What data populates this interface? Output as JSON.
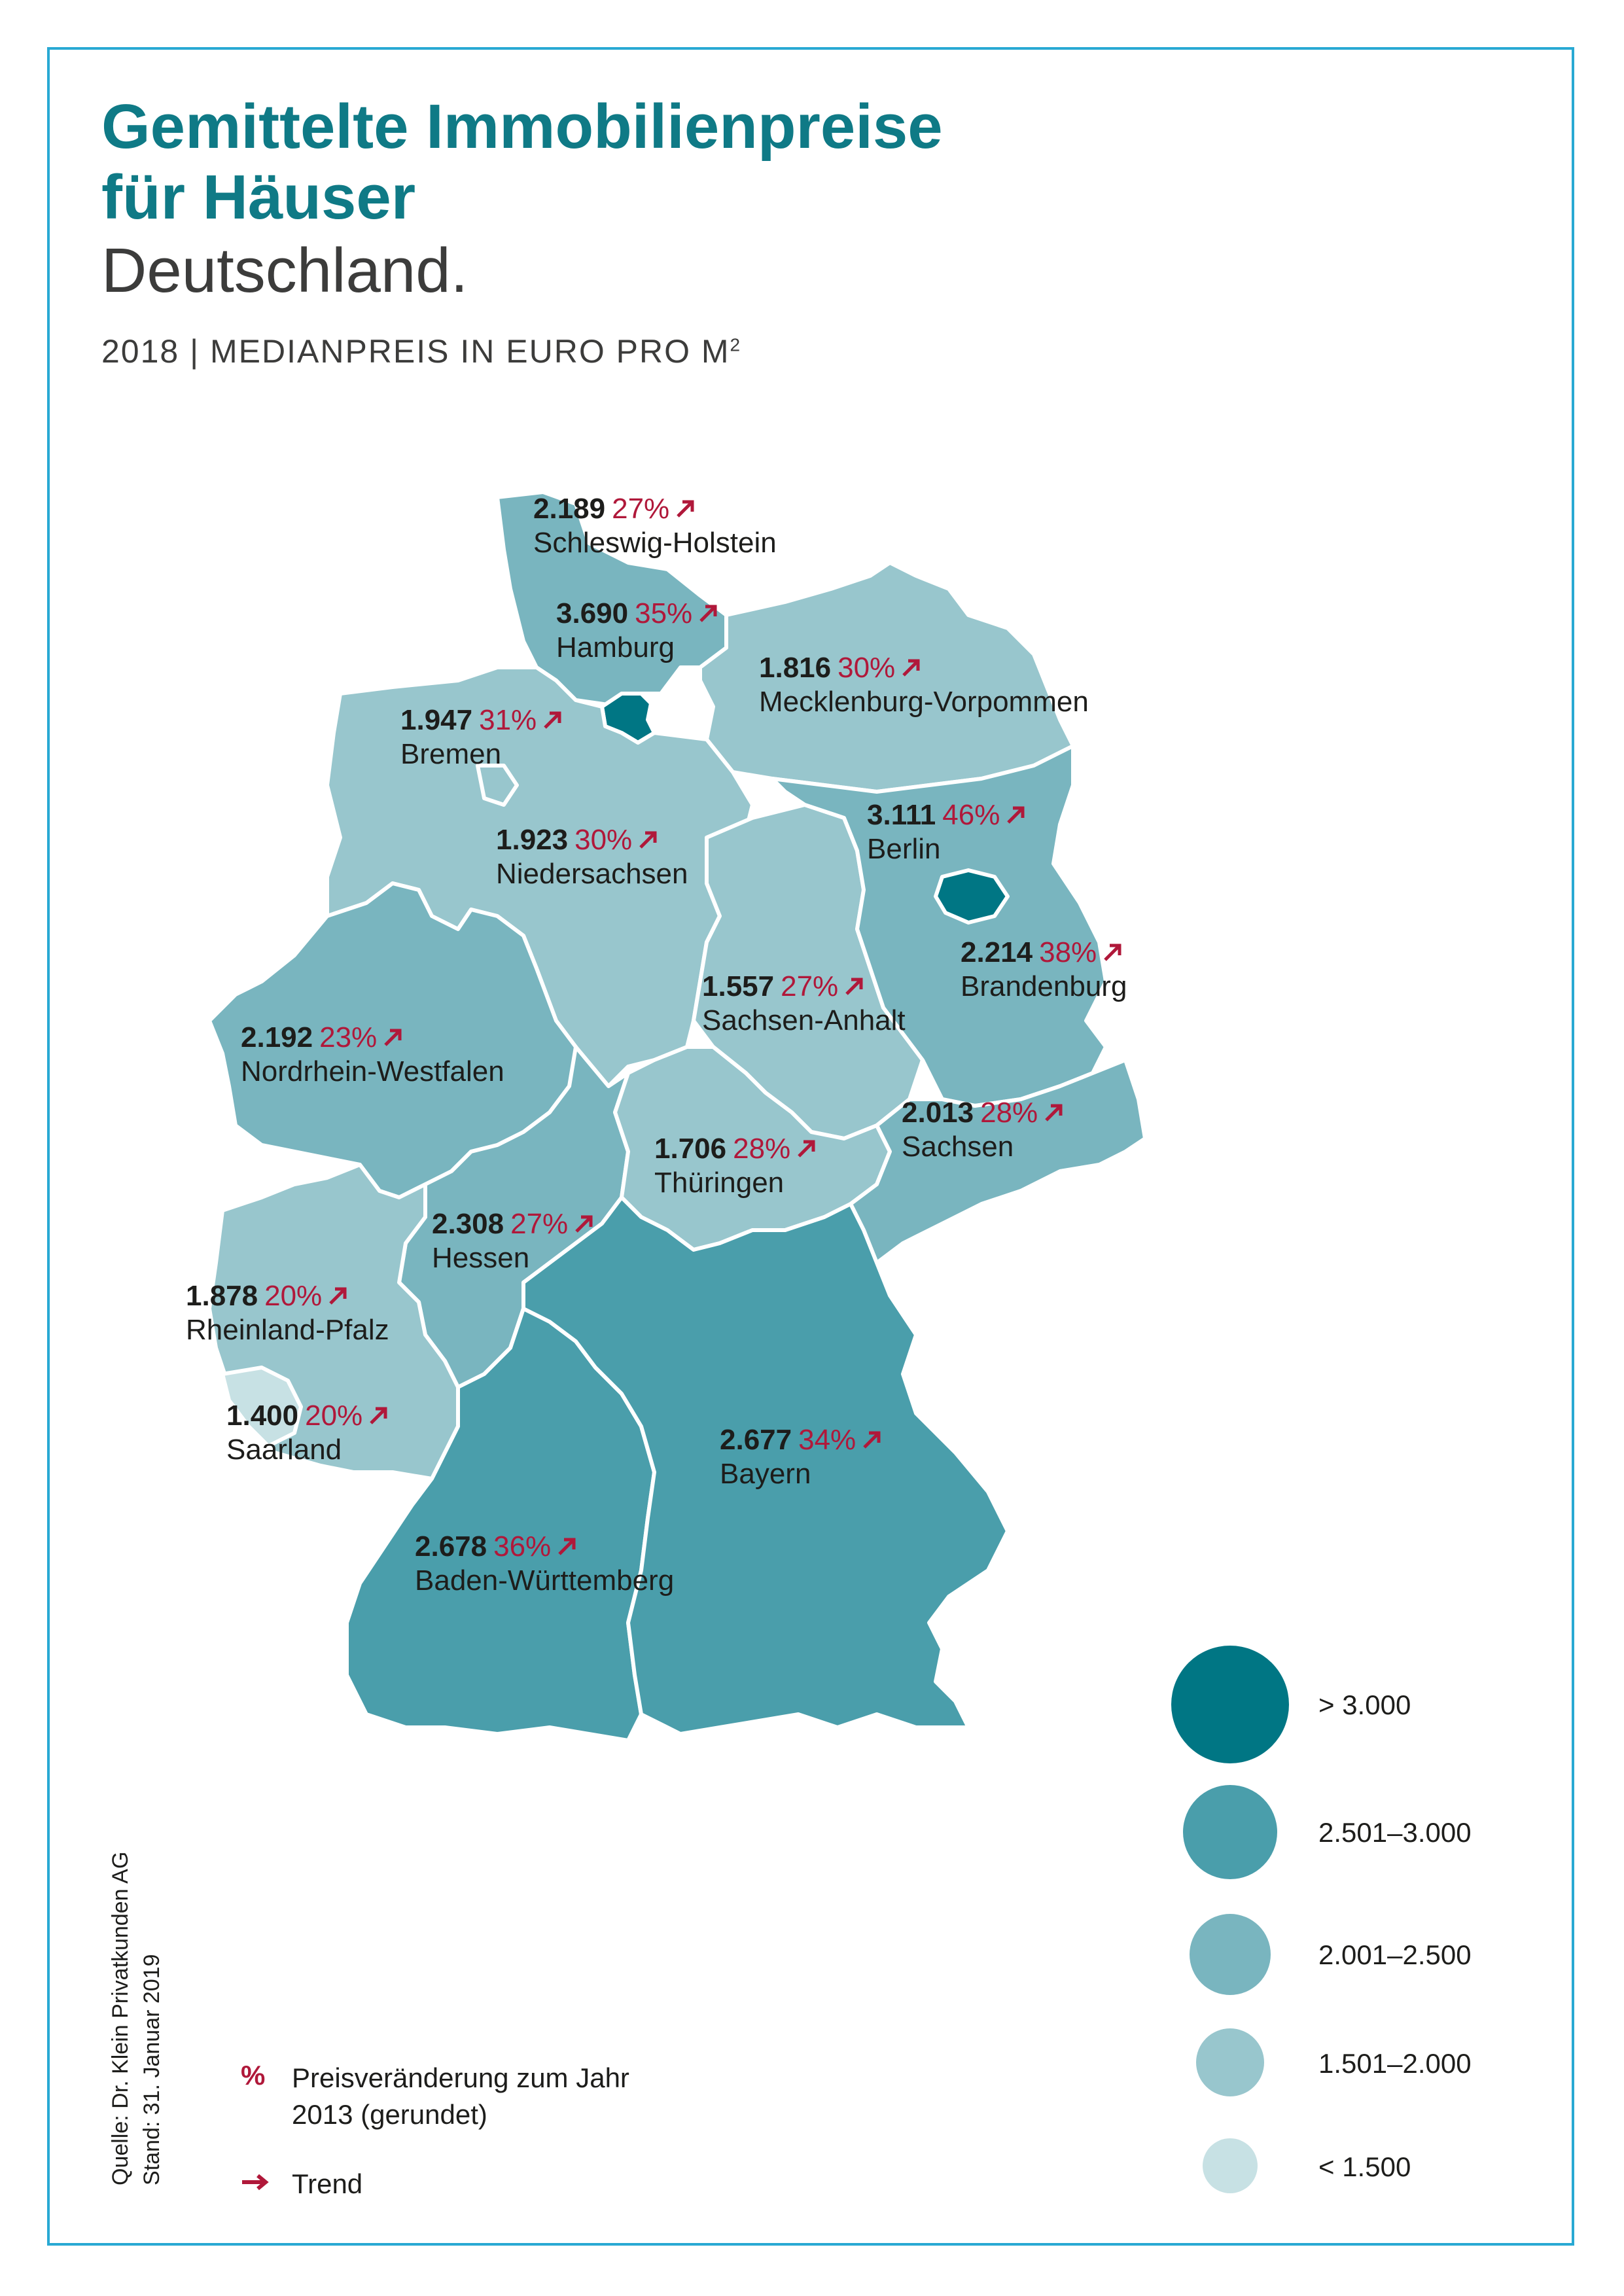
{
  "header": {
    "title_line1": "Gemittelte Immobilienpreise",
    "title_line2": "für Häuser",
    "subtitle": "Deutschland.",
    "meta_prefix": "2018 | MEDIANPREIS IN EURO PRO M",
    "meta_sup": "2"
  },
  "regions": {
    "schleswig_holstein": {
      "value": "2.189",
      "change": "27%",
      "name": "Schleswig-Holstein",
      "category": "2.001–2.500"
    },
    "hamburg": {
      "value": "3.690",
      "change": "35%",
      "name": "Hamburg",
      "category": "> 3.000"
    },
    "mecklenburg": {
      "value": "1.816",
      "change": "30%",
      "name": "Mecklenburg-Vorpommen",
      "category": "1.501–2.000"
    },
    "bremen": {
      "value": "1.947",
      "change": "31%",
      "name": "Bremen",
      "category": "1.501–2.000"
    },
    "berlin": {
      "value": "3.111",
      "change": "46%",
      "name": "Berlin",
      "category": "> 3.000"
    },
    "niedersachsen": {
      "value": "1.923",
      "change": "30%",
      "name": "Niedersachsen",
      "category": "1.501–2.000"
    },
    "brandenburg": {
      "value": "2.214",
      "change": "38%",
      "name": "Brandenburg",
      "category": "2.001–2.500"
    },
    "sachsen_anhalt": {
      "value": "1.557",
      "change": "27%",
      "name": "Sachsen-Anhalt",
      "category": "1.501–2.000"
    },
    "nrw": {
      "value": "2.192",
      "change": "23%",
      "name": "Nordrhein-Westfalen",
      "category": "2.001–2.500"
    },
    "sachsen": {
      "value": "2.013",
      "change": "28%",
      "name": "Sachsen",
      "category": "2.001–2.500"
    },
    "thueringen": {
      "value": "1.706",
      "change": "28%",
      "name": "Thüringen",
      "category": "1.501–2.000"
    },
    "hessen": {
      "value": "2.308",
      "change": "27%",
      "name": "Hessen",
      "category": "2.001–2.500"
    },
    "rheinland_pfalz": {
      "value": "1.878",
      "change": "20%",
      "name": "Rheinland-Pfalz",
      "category": "1.501–2.000"
    },
    "saarland": {
      "value": "1.400",
      "change": "20%",
      "name": "Saarland",
      "category": "< 1.500"
    },
    "bayern": {
      "value": "2.677",
      "change": "34%",
      "name": "Bayern",
      "category": "2.501–3.000"
    },
    "bw": {
      "value": "2.678",
      "change": "36%",
      "name": "Baden-Württemberg",
      "category": "2.501–3.000"
    }
  },
  "legend": {
    "items": [
      {
        "label": "> 3.000",
        "color": "#007684"
      },
      {
        "label": "2.501–3.000",
        "color": "#4a9eab"
      },
      {
        "label": "2.001–2.500",
        "color": "#79b5bf"
      },
      {
        "label": "1.501–2.000",
        "color": "#98c6cd"
      },
      {
        "label": "< 1.500",
        "color": "#c7e1e4"
      }
    ]
  },
  "notes": {
    "pct_symbol": "%",
    "pct_text": "Preisveränderung zum Jahr 2013 (gerundet)",
    "trend_text": "Trend"
  },
  "source": {
    "line1": "Quelle: Dr. Klein Privatkunden AG",
    "line2": "Stand: 31. Januar 2019"
  },
  "colors": {
    "title": "#0f7a86",
    "change": "#b0183a",
    "border": "#29a9d3"
  }
}
